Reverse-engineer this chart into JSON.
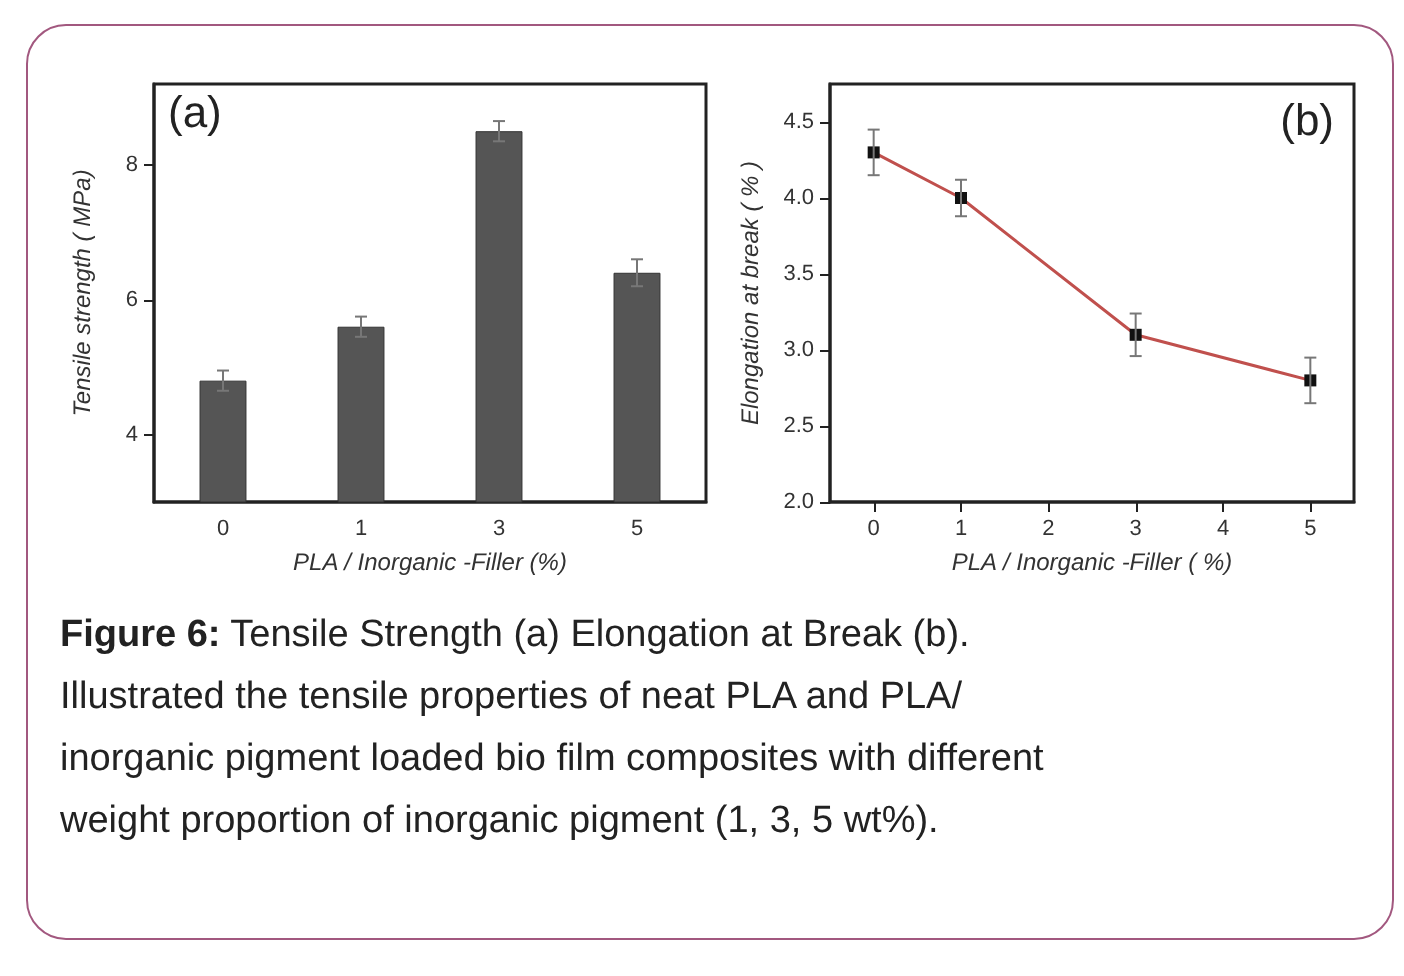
{
  "chart_data": [
    {
      "type": "bar",
      "title": "(a)",
      "xlabel": "PLA / Inorganic -Filler (%)",
      "ylabel": "Tensile strength ( MPa)",
      "categories": [
        "0",
        "1",
        "3",
        "5"
      ],
      "series": [
        {
          "color": "#555555",
          "values": [
            4.8,
            5.6,
            8.5,
            6.4
          ],
          "errors": [
            0.15,
            0.15,
            0.15,
            0.2
          ]
        }
      ],
      "ylim": [
        3,
        9.2
      ],
      "yticks": [
        4,
        6,
        8
      ],
      "grid": false,
      "annotations": [
        "Figure 6:",
        "Tensile Strength (a) Elongation at Break (b).",
        "Illustrated the tensile properties of neat PLA and PLA/",
        "inorganic pigment loaded bio film composites with different",
        "weight proportion of inorganic pigment (1, 3, 5 wt%)."
      ]
    },
    {
      "type": "line",
      "title": "(b)",
      "xlabel": "PLA / Inorganic -Filler ( %)",
      "ylabel": "Elongation at break ( % )",
      "x": [
        0,
        1,
        3,
        5
      ],
      "series": [
        {
          "color": "#c0504d",
          "values": [
            4.3,
            4.0,
            3.1,
            2.8
          ],
          "errors": [
            0.15,
            0.12,
            0.14,
            0.15
          ]
        }
      ],
      "xlim": [
        -0.5,
        5.5
      ],
      "xticks": [
        0,
        1,
        2,
        3,
        4,
        5
      ],
      "ylim": [
        2,
        4.75
      ],
      "yticks": [
        {
          "value": 2,
          "label": "2.0"
        },
        {
          "value": 2.5,
          "label": "2.5"
        },
        {
          "value": 3,
          "label": "3.0"
        },
        {
          "value": 3.5,
          "label": "3.5"
        },
        {
          "value": 4,
          "label": "4.0"
        },
        {
          "value": 4.5,
          "label": "4.5"
        }
      ],
      "grid": false,
      "marker": "square",
      "line_style": "solid"
    }
  ]
}
